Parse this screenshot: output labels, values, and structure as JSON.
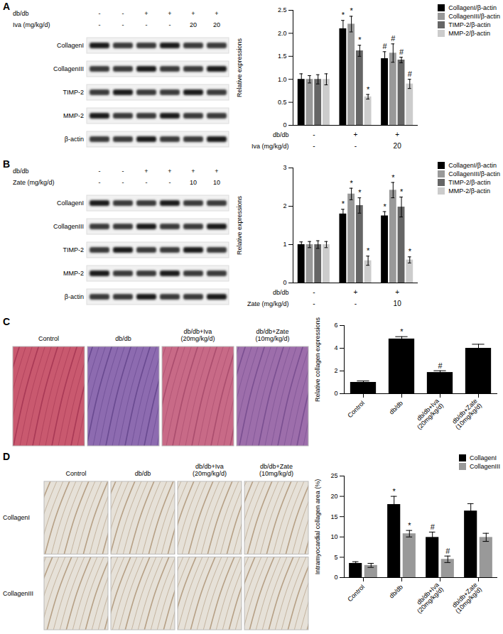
{
  "chart_data": [
    {
      "type": "bar",
      "categories": [
        null,
        null,
        null
      ],
      "ylabel": "Relative expressions",
      "ylim": [
        0,
        2.5
      ],
      "yticks": [
        0,
        0.5,
        {
          "value": 1,
          "label": "1.0"
        },
        1.5,
        {
          "value": 2,
          "label": "2.0"
        },
        2.5
      ],
      "legend": "top-right",
      "conditions": [
        {
          "label": "db/db",
          "values": [
            "-",
            "+",
            "+"
          ]
        },
        {
          "label": "Iva (mg/kg/d)",
          "values": [
            "-",
            "-",
            "20"
          ]
        }
      ],
      "series": [
        {
          "name": "CollagenI/β-actin",
          "color": "#000000",
          "values": [
            1.0,
            2.1,
            1.45
          ],
          "errors": [
            0.12,
            0.18,
            0.15
          ],
          "annotations": [
            null,
            "*",
            "#"
          ]
        },
        {
          "name": "CollagenIII/β-actin",
          "color": "#999999",
          "values": [
            1.0,
            2.2,
            1.57
          ],
          "errors": [
            0.08,
            0.17,
            0.2
          ],
          "annotations": [
            null,
            "*",
            "#"
          ]
        },
        {
          "name": "TIMP-2/β-actin",
          "color": "#666666",
          "values": [
            1.0,
            1.62,
            1.42
          ],
          "errors": [
            0.1,
            0.12,
            0.06
          ],
          "annotations": [
            null,
            "*",
            "#"
          ]
        },
        {
          "name": "MMP-2/β-actin",
          "color": "#cccccc",
          "values": [
            1.0,
            0.62,
            0.9
          ],
          "errors": [
            0.12,
            0.05,
            0.1
          ],
          "annotations": [
            null,
            "*",
            "#"
          ]
        }
      ]
    },
    {
      "type": "bar",
      "categories": [
        null,
        null,
        null
      ],
      "ylabel": "Relative expressions",
      "ylim": [
        0,
        3
      ],
      "yticks": [
        0,
        1,
        2,
        3
      ],
      "legend": "top-right",
      "conditions": [
        {
          "label": "db/db",
          "values": [
            "-",
            "+",
            "+"
          ]
        },
        {
          "label": "Zate (mg/kg/d)",
          "values": [
            "-",
            "-",
            "10"
          ]
        }
      ],
      "series": [
        {
          "name": "CollagenI/β-actin",
          "color": "#000000",
          "values": [
            1.0,
            1.8,
            1.75
          ],
          "errors": [
            0.07,
            0.12,
            0.11
          ],
          "annotations": [
            null,
            "*",
            "*"
          ]
        },
        {
          "name": "CollagenIII/β-actin",
          "color": "#999999",
          "values": [
            1.0,
            2.32,
            2.42
          ],
          "errors": [
            0.08,
            0.15,
            0.2
          ],
          "annotations": [
            null,
            "*",
            "*"
          ]
        },
        {
          "name": "TIMP-2/β-actin",
          "color": "#666666",
          "values": [
            1.0,
            2.02,
            1.98
          ],
          "errors": [
            0.1,
            0.2,
            0.26
          ],
          "annotations": [
            null,
            "*",
            "*"
          ]
        },
        {
          "name": "MMP-2/β-actin",
          "color": "#cccccc",
          "values": [
            1.0,
            0.58,
            0.6
          ],
          "errors": [
            0.08,
            0.12,
            0.08
          ],
          "annotations": [
            null,
            "*",
            "*"
          ]
        }
      ]
    },
    {
      "type": "bar",
      "categories": [
        "Control",
        "db/db",
        "db/db+Iva\n(20mg/kg/d)",
        "db/db+Zate\n(10mg/kg/d)"
      ],
      "ylabel": "Relative collagen expressions",
      "ylim": [
        0,
        6
      ],
      "yticks": [
        0,
        2,
        4,
        6
      ],
      "color": "#000000",
      "values": [
        1.0,
        4.82,
        1.87,
        4.0
      ],
      "errors": [
        0.12,
        0.2,
        0.15,
        0.35
      ],
      "annotations": [
        null,
        "*",
        "#",
        null
      ]
    },
    {
      "type": "bar",
      "categories": [
        "Control",
        "db/db",
        "db/db+Iva\n(20mg/kg/d)",
        "db/db+Zate\n(10mg/kg/d)"
      ],
      "ylabel": "Intramyocardial collagen area (%)",
      "ylim": [
        0,
        25
      ],
      "yticks": [
        0,
        5,
        10,
        15,
        20,
        25
      ],
      "legend": "top-right",
      "series": [
        {
          "name": "CollagenI",
          "color": "#000000",
          "values": [
            3.5,
            18,
            9.9,
            16.4
          ],
          "errors": [
            0.4,
            2.0,
            1.3,
            1.8
          ],
          "annotations": [
            null,
            "*",
            "#",
            null
          ]
        },
        {
          "name": "CollagenIII",
          "color": "#999999",
          "values": [
            3.0,
            10.8,
            4.5,
            9.9
          ],
          "errors": [
            0.5,
            0.8,
            0.8,
            1.0
          ],
          "annotations": [
            null,
            "*",
            "#",
            null
          ]
        }
      ]
    }
  ],
  "figure": {
    "panels": [
      {
        "label": "A",
        "blot": {
          "conditions": [
            {
              "label": "db/db",
              "values": [
                "-",
                "-",
                "+",
                "+",
                "+",
                "+"
              ]
            },
            {
              "label": "Iva (mg/kg/d)",
              "values": [
                "-",
                "-",
                "-",
                "-",
                "20",
                "20"
              ]
            }
          ],
          "proteins": [
            "CollagenI",
            "CollagenIII",
            "TIMP-2",
            "MMP-2",
            "β-actin"
          ]
        }
      },
      {
        "label": "B",
        "blot": {
          "conditions": [
            {
              "label": "db/db",
              "values": [
                "-",
                "-",
                "+",
                "+",
                "+",
                "+"
              ]
            },
            {
              "label": "Zate (mg/kg/d)",
              "values": [
                "-",
                "-",
                "-",
                "-",
                "10",
                "10"
              ]
            }
          ],
          "proteins": [
            "CollagenI",
            "CollagenIII",
            "TIMP-2",
            "MMP-2",
            "β-actin"
          ]
        }
      },
      {
        "label": "C",
        "images": {
          "columns": [
            "Control",
            "db/db",
            "db/db+Iva\n(20mg/kg/d)",
            "db/db+Zate\n(10mg/kg/d)"
          ],
          "rows": []
        }
      },
      {
        "label": "D",
        "images": {
          "columns": [
            "Control",
            "db/db",
            "db/db+Iva\n(20mg/kg/d)",
            "db/db+Zate\n(10mg/kg/d)"
          ],
          "rows": [
            "CollagenI",
            "CollagenIII"
          ]
        }
      }
    ]
  }
}
